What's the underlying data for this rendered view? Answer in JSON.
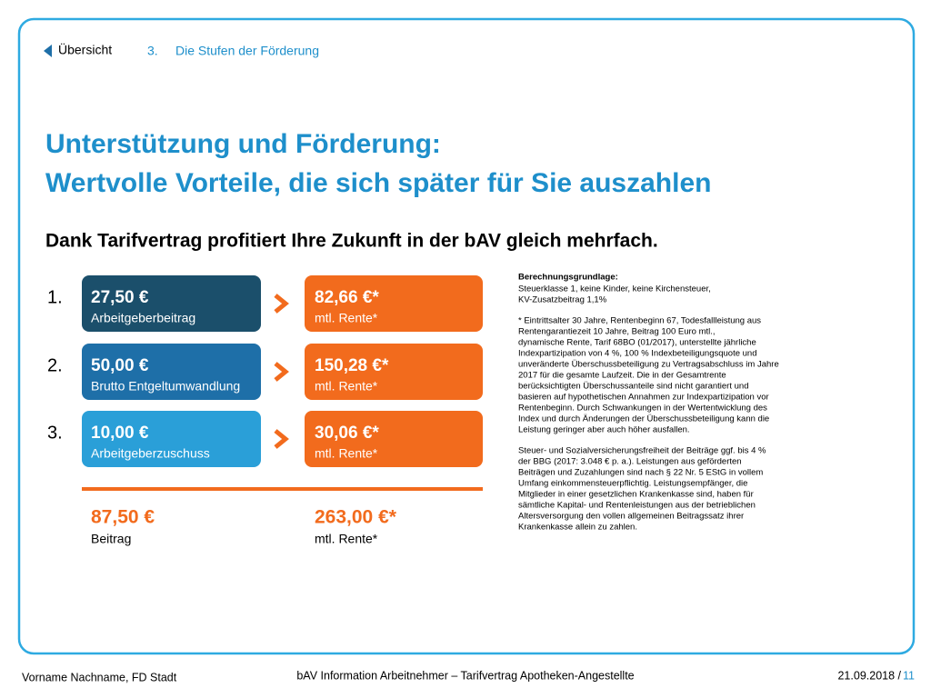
{
  "nav": {
    "back": "Übersicht",
    "section_number": "3.",
    "section": "Die Stufen der Förderung"
  },
  "title": [
    "Unterstützung und Förderung:",
    "Wertvolle Vorteile, die sich später für Sie auszahlen"
  ],
  "subtitle": "Dank Tarifvertrag profitiert Ihre Zukunft in der bAV gleich mehrfach.",
  "rows": [
    {
      "number": "1.",
      "contribution": "27,50 €",
      "contribution_label": "Arbeitgeberbeitrag",
      "pension": "82,66 €*",
      "pension_label": "mtl. Rente*"
    },
    {
      "number": "2.",
      "contribution": "50,00 €",
      "contribution_label": "Brutto Entgeltumwandlung",
      "pension": "150,28 €*",
      "pension_label": "mtl. Rente*"
    },
    {
      "number": "3.",
      "contribution": "10,00 €",
      "contribution_label": "Arbeitgeberzuschuss",
      "pension": "30,06 €*",
      "pension_label": "mtl. Rente*"
    }
  ],
  "total": {
    "contribution": "87,50 €",
    "contribution_label": "Beitrag",
    "pension": "263,00 €*",
    "pension_label": "mtl. Rente*"
  },
  "notes": {
    "heading": "Berechnungsgrundlage:",
    "paragraphs": [
      [
        "Steuerklasse 1, keine Kinder, keine Kirchensteuer,",
        "KV-Zusatzbeitrag 1,1%"
      ],
      [
        "* Eintrittsalter 30 Jahre, Rentenbeginn 67, Todesfallleistung aus",
        "Rentengarantiezeit 10 Jahre, Beitrag 100 Euro mtl.,",
        "dynamische Rente, Tarif 68BO (01/2017), unterstellte jährliche",
        "Indexpartizipation von 4 %, 100 % Indexbeteiligungsquote und",
        "unveränderte Überschussbeteiligung zu Vertragsabschluss im Jahre",
        "2017 für die gesamte Laufzeit. Die in der Gesamtrente",
        "berücksichtigten Überschussanteile sind nicht garantiert und",
        "basieren auf hypothetischen Annahmen zur Indexpartizipation vor",
        "Rentenbeginn. Durch Schwankungen in der Wertentwicklung des",
        "Index und durch Änderungen der Überschussbeteiligung kann die",
        "Leistung geringer aber auch höher ausfallen."
      ],
      [
        "Steuer- und Sozialversicherungsfreiheit der Beiträge ggf. bis 4 %",
        "der BBG (2017: 3.048 € p. a.). Leistungen aus geförderten",
        "Beiträgen und Zuzahlungen sind nach § 22 Nr. 5 EStG in vollem",
        "Umfang einkommensteuerpflichtig. Leistungsempfänger, die",
        "Mitglieder in einer gesetzlichen Krankenkasse sind, haben für",
        "sämtliche Kapital- und Rentenleistungen aus der betrieblichen",
        "Altersversorgung den vollen allgemeinen Beitragssatz ihrer",
        "Krankenkasse allein zu zahlen."
      ]
    ]
  },
  "footer": {
    "author": "Vorname Nachname, FD Stadt",
    "document": "bAV Information Arbeitnehmer – Tarifvertrag Apotheken-Angestellte",
    "date": "21.09.2018 /",
    "page": "11"
  }
}
